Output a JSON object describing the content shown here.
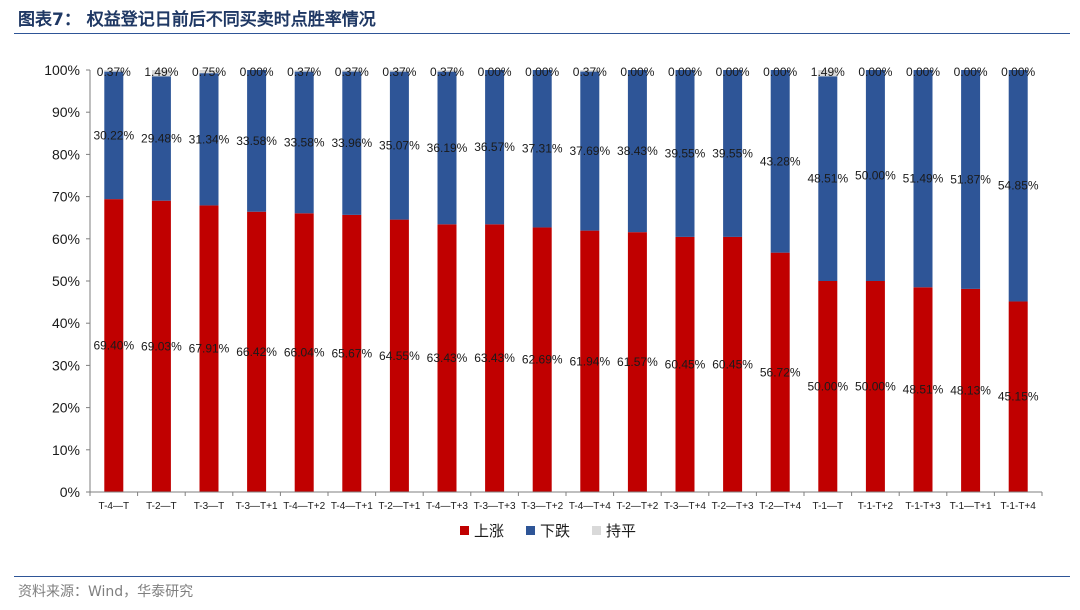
{
  "header": {
    "title": "图表7：  权益登记日前后不同买卖时点胜率情况"
  },
  "footer": {
    "source": "资料来源：Wind，华泰研究"
  },
  "colors": {
    "up": "#c00000",
    "down": "#2e5597",
    "flat": "#d9d9d9",
    "rule": "#2e5597"
  },
  "chart_data": {
    "type": "bar",
    "stacked": true,
    "ylim": [
      0,
      100
    ],
    "yticks": [
      "0%",
      "10%",
      "20%",
      "30%",
      "40%",
      "50%",
      "60%",
      "70%",
      "80%",
      "90%",
      "100%"
    ],
    "legend_position": "bottom-center",
    "categories": [
      "T-4—T",
      "T-2—T",
      "T-3—T",
      "T-3—T+1",
      "T-4—T+2",
      "T-4—T+1",
      "T-2—T+1",
      "T-4—T+3",
      "T-3—T+3",
      "T-3—T+2",
      "T-4—T+4",
      "T-2—T+2",
      "T-3—T+4",
      "T-2—T+3",
      "T-2—T+4",
      "T-1—T",
      "T-1-T+2",
      "T-1-T+3",
      "T-1—T+1",
      "T-1-T+4"
    ],
    "series": [
      {
        "name": "上涨",
        "color": "#c00000",
        "values": [
          69.4,
          69.03,
          67.91,
          66.42,
          66.04,
          65.67,
          64.55,
          63.43,
          63.43,
          62.69,
          61.94,
          61.57,
          60.45,
          60.45,
          56.72,
          50.0,
          50.0,
          48.51,
          48.13,
          45.15
        ],
        "labels": [
          "69.40%",
          "69.03%",
          "67.91%",
          "66.42%",
          "66.04%",
          "65.67%",
          "64.55%",
          "63.43%",
          "63.43%",
          "62.69%",
          "61.94%",
          "61.57%",
          "60.45%",
          "60.45%",
          "56.72%",
          "50.00%",
          "50.00%",
          "48.51%",
          "48.13%",
          "45.15%"
        ]
      },
      {
        "name": "下跌",
        "color": "#2e5597",
        "values": [
          30.22,
          29.48,
          31.34,
          33.58,
          33.58,
          33.96,
          35.07,
          36.19,
          36.57,
          37.31,
          37.69,
          38.43,
          39.55,
          39.55,
          43.28,
          48.51,
          50.0,
          51.49,
          51.87,
          54.85
        ],
        "labels": [
          "30.22%",
          "29.48%",
          "31.34%",
          "33.58%",
          "33.58%",
          "33.96%",
          "35.07%",
          "36.19%",
          "36.57%",
          "37.31%",
          "37.69%",
          "38.43%",
          "39.55%",
          "39.55%",
          "43.28%",
          "48.51%",
          "50.00%",
          "51.49%",
          "51.87%",
          "54.85%"
        ]
      },
      {
        "name": "持平",
        "color": "#d9d9d9",
        "values": [
          0.37,
          1.49,
          0.75,
          0.0,
          0.37,
          0.37,
          0.37,
          0.37,
          0.0,
          0.0,
          0.37,
          0.0,
          0.0,
          0.0,
          0.0,
          1.49,
          0.0,
          0.0,
          0.0,
          0.0
        ],
        "labels": [
          "0.37%",
          "1.49%",
          "0.75%",
          "0.00%",
          "0.37%",
          "0.37%",
          "0.37%",
          "0.37%",
          "0.00%",
          "0.00%",
          "0.37%",
          "0.00%",
          "0.00%",
          "0.00%",
          "0.00%",
          "1.49%",
          "0.00%",
          "0.00%",
          "0.00%",
          "0.00%"
        ]
      }
    ]
  }
}
